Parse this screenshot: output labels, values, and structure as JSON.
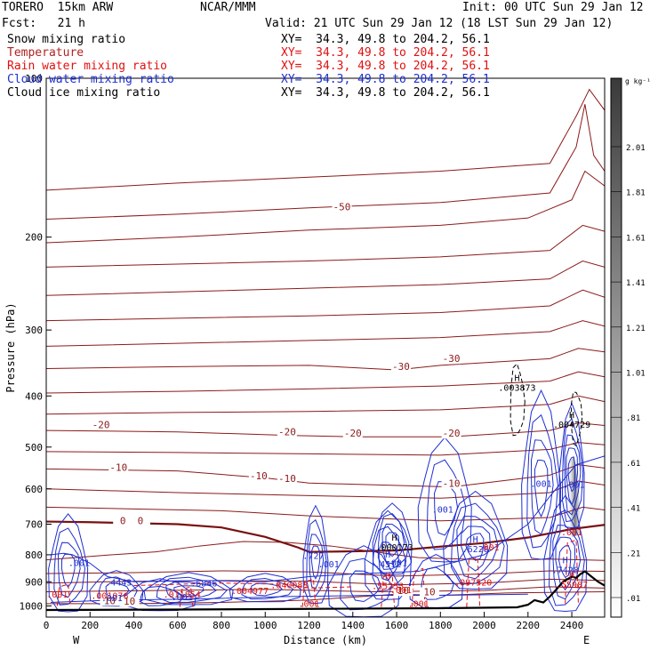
{
  "header": {
    "model": "TORERO  15km ARW",
    "center": "NCAR/MMM",
    "init": "Init: 00 UTC Sun 29 Jan 12",
    "fcst": "Fcst:   21 h",
    "valid": "Valid: 21 UTC Sun 29 Jan 12 (18 LST Sun 29 Jan 12)"
  },
  "fields": [
    {
      "name": "Snow mixing ratio",
      "xy": "XY=  34.3, 49.8 to 204.2, 56.1",
      "color": "#000000"
    },
    {
      "name": "Temperature",
      "xy": "XY=  34.3, 49.8 to 204.2, 56.1",
      "color": "#b22222"
    },
    {
      "name": "Rain water mixing ratio",
      "xy": "XY=  34.3, 49.8 to 204.2, 56.1",
      "color": "#e01010"
    },
    {
      "name": "Cloud water mixing ratio",
      "xy": "XY=  34.3, 49.8 to 204.2, 56.1",
      "color": "#1e2fd0"
    },
    {
      "name": "Cloud ice mixing ratio",
      "xy": "XY=  34.3, 49.8 to 204.2, 56.1",
      "color": "#000000"
    }
  ],
  "chart_data": {
    "type": "cross-section contour",
    "xlabel": "Distance (km)",
    "ylabel": "Pressure (hPa)",
    "xlim": [
      0,
      2550
    ],
    "ylim": [
      1050,
      100
    ],
    "y_scale": "log",
    "x_ticks": [
      0,
      200,
      400,
      600,
      800,
      1000,
      1200,
      1400,
      1600,
      1800,
      2000,
      2200,
      2400
    ],
    "y_ticks": [
      100,
      200,
      300,
      400,
      500,
      600,
      700,
      800,
      900,
      1000
    ],
    "x_end_labels": {
      "left": "W",
      "right": "E"
    },
    "colorbar": {
      "unit": "g kg⁻¹",
      "ticks": [
        ".01",
        ".21",
        ".41",
        ".61",
        ".81",
        "1.01",
        "1.21",
        "1.41",
        "1.61",
        "1.81",
        "2.01"
      ]
    },
    "temperature_labels": [
      {
        "x": 1350,
        "p": 178,
        "text": "-50"
      },
      {
        "x": 1620,
        "p": 357,
        "text": "-30"
      },
      {
        "x": 1850,
        "p": 345,
        "text": "-30"
      },
      {
        "x": 250,
        "p": 460,
        "text": "-20"
      },
      {
        "x": 1100,
        "p": 475,
        "text": "-20"
      },
      {
        "x": 1400,
        "p": 478,
        "text": "-20"
      },
      {
        "x": 1850,
        "p": 478,
        "text": "-20"
      },
      {
        "x": 330,
        "p": 555,
        "text": "-10"
      },
      {
        "x": 970,
        "p": 575,
        "text": "-10"
      },
      {
        "x": 1100,
        "p": 582,
        "text": "-10"
      },
      {
        "x": 1850,
        "p": 595,
        "text": "-10"
      },
      {
        "x": 350,
        "p": 700,
        "text": "0"
      },
      {
        "x": 430,
        "p": 700,
        "text": "0"
      },
      {
        "x": 1630,
        "p": 950,
        "text": "10"
      },
      {
        "x": 1750,
        "p": 955,
        "text": "10"
      },
      {
        "x": 290,
        "p": 992,
        "text": "10"
      },
      {
        "x": 380,
        "p": 995,
        "text": "10"
      }
    ],
    "maxima_labels": [
      {
        "x": 2150,
        "p": 375,
        "text": "H",
        "value": ".003873",
        "color": "#000000"
      },
      {
        "x": 2400,
        "p": 440,
        "text": "H",
        "value": ".004729",
        "color": "#000000"
      },
      {
        "x": 1590,
        "p": 752,
        "text": "H",
        "value": ".000173",
        "color": "#000000"
      },
      {
        "x": 1960,
        "p": 758,
        "text": "H",
        "value": ".6228",
        "color": "#1e2fd0"
      },
      {
        "x": 1560,
        "p": 810,
        "text": "H",
        "value": ".4512",
        "color": "#1e2fd0"
      },
      {
        "x": 1220,
        "p": 815,
        "text": ".727",
        "value": "",
        "color": "#1e2fd0"
      },
      {
        "x": 2370,
        "p": 830,
        "text": "H",
        "value": ".7428",
        "color": "#1e2fd0"
      },
      {
        "x": 330,
        "p": 915,
        "text": ".4443",
        "value": "",
        "color": "#1e2fd0"
      },
      {
        "x": 720,
        "p": 918,
        "text": ".6846",
        "value": "",
        "color": "#1e2fd0"
      },
      {
        "x": 1110,
        "p": 925,
        "text": ".040083",
        "value": "",
        "color": "#e01010"
      },
      {
        "x": 1560,
        "p": 890,
        "text": "H",
        "value": ".55253",
        "color": "#e01010"
      },
      {
        "x": 1950,
        "p": 915,
        "text": ".097520",
        "value": "",
        "color": "#e01010"
      },
      {
        "x": 2400,
        "p": 885,
        "text": "H",
        "value": ".55987",
        "color": "#e01010"
      },
      {
        "x": 930,
        "p": 950,
        "text": ".004977",
        "value": "",
        "color": "#e01010"
      },
      {
        "x": 620,
        "p": 965,
        "text": ".011854",
        "value": "",
        "color": "#e01010"
      },
      {
        "x": 290,
        "p": 970,
        "text": ".001076",
        "value": "",
        "color": "#e01010"
      }
    ],
    "small_labels": [
      {
        "x": 1810,
        "p": 665,
        "text": ".001",
        "color": "#1e2fd0"
      },
      {
        "x": 2260,
        "p": 595,
        "text": ".001",
        "color": "#1e2fd0"
      },
      {
        "x": 2410,
        "p": 597,
        "text": ".001",
        "color": "#1e2fd0"
      },
      {
        "x": 150,
        "p": 840,
        "text": ".001",
        "color": "#1e2fd0"
      },
      {
        "x": 1290,
        "p": 845,
        "text": ".001",
        "color": "#1e2fd0"
      },
      {
        "x": 1600,
        "p": 840,
        "text": ".001",
        "color": "#1e2fd0"
      },
      {
        "x": 620,
        "p": 975,
        "text": ".001",
        "color": "#1e2fd0"
      },
      {
        "x": 50,
        "p": 965,
        "text": ".001",
        "color": "#e01010"
      },
      {
        "x": 1620,
        "p": 945,
        "text": ".001",
        "color": "#e01010"
      },
      {
        "x": 1200,
        "p": 1005,
        "text": ".001",
        "color": "#e01010"
      },
      {
        "x": 1700,
        "p": 1005,
        "text": ".001",
        "color": "#e01010"
      },
      {
        "x": 2020,
        "p": 785,
        "text": ".001",
        "color": "#e01010"
      },
      {
        "x": 2400,
        "p": 735,
        "text": ".001",
        "color": "#e01010"
      },
      {
        "x": 300,
        "p": 980,
        "text": ".001",
        "color": "#1e2fd0"
      }
    ]
  }
}
